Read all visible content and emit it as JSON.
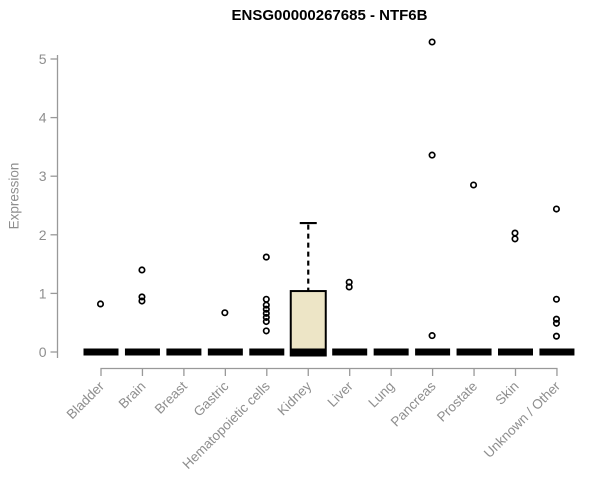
{
  "chart_data": {
    "type": "boxplot",
    "title": "ENSG00000267685 - NTF6B",
    "ylabel": "Expression",
    "xlabel": "",
    "yticks": [
      0,
      1,
      2,
      3,
      4,
      5
    ],
    "ylim": [
      0,
      5.4
    ],
    "grid": false,
    "legend": "none",
    "categories": [
      "Bladder",
      "Brain",
      "Breast",
      "Gastric",
      "Hematopoietic cells",
      "Kidney",
      "Liver",
      "Lung",
      "Pancreas",
      "Prostate",
      "Skin",
      "Unknown / Other"
    ],
    "boxes": [
      {
        "category": "Bladder",
        "q1": 0,
        "median": 0,
        "q3": 0,
        "whisker_low": 0,
        "whisker_high": 0,
        "outliers": [
          0.82
        ]
      },
      {
        "category": "Brain",
        "q1": 0,
        "median": 0,
        "q3": 0,
        "whisker_low": 0,
        "whisker_high": 0,
        "outliers": [
          1.4,
          0.94,
          0.87
        ]
      },
      {
        "category": "Breast",
        "q1": 0,
        "median": 0,
        "q3": 0,
        "whisker_low": 0,
        "whisker_high": 0,
        "outliers": []
      },
      {
        "category": "Gastric",
        "q1": 0,
        "median": 0,
        "q3": 0,
        "whisker_low": 0,
        "whisker_high": 0,
        "outliers": [
          0.67
        ]
      },
      {
        "category": "Hematopoietic cells",
        "q1": 0,
        "median": 0,
        "q3": 0,
        "whisker_low": 0,
        "whisker_high": 0,
        "outliers": [
          1.62,
          0.9,
          0.8,
          0.73,
          0.66,
          0.59,
          0.52,
          0.36
        ]
      },
      {
        "category": "Kidney",
        "q1": 0,
        "median": 0,
        "q3": 1.04,
        "whisker_low": 0,
        "whisker_high": 2.2,
        "outliers": []
      },
      {
        "category": "Liver",
        "q1": 0,
        "median": 0,
        "q3": 0,
        "whisker_low": 0,
        "whisker_high": 0,
        "outliers": [
          1.19,
          1.11
        ]
      },
      {
        "category": "Lung",
        "q1": 0,
        "median": 0,
        "q3": 0,
        "whisker_low": 0,
        "whisker_high": 0,
        "outliers": []
      },
      {
        "category": "Pancreas",
        "q1": 0,
        "median": 0,
        "q3": 0,
        "whisker_low": 0,
        "whisker_high": 0,
        "outliers": [
          5.29,
          3.36,
          0.28
        ]
      },
      {
        "category": "Prostate",
        "q1": 0,
        "median": 0,
        "q3": 0,
        "whisker_low": 0,
        "whisker_high": 0,
        "outliers": [
          2.85
        ]
      },
      {
        "category": "Skin",
        "q1": 0,
        "median": 0,
        "q3": 0,
        "whisker_low": 0,
        "whisker_high": 0,
        "outliers": [
          2.03,
          1.93
        ]
      },
      {
        "category": "Unknown / Other",
        "q1": 0,
        "median": 0,
        "q3": 0,
        "whisker_low": 0,
        "whisker_high": 0,
        "outliers": [
          2.44,
          0.9,
          0.56,
          0.49,
          0.27
        ]
      }
    ],
    "colors": {
      "box_fill": "#ede5c6",
      "box_stroke": "#000000",
      "collapsed_box": "#000000",
      "outlier_stroke": "#000000",
      "axis_line": "#999999",
      "tick_text": "#8e8e8e",
      "title_text": "#000000",
      "background": "#ffffff"
    }
  }
}
